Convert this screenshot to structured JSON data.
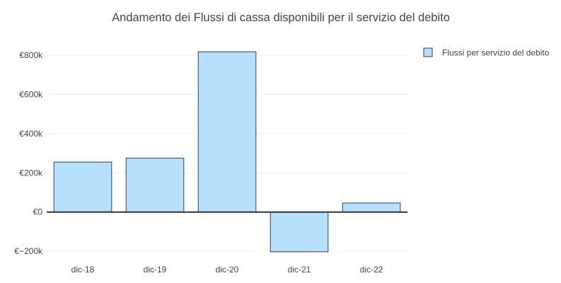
{
  "chart_data": {
    "type": "bar",
    "title": "Andamento dei Flussi di cassa disponibili per il servizio del debito",
    "categories": [
      "dic-18",
      "dic-19",
      "dic-20",
      "dic-21",
      "dic-22"
    ],
    "series": [
      {
        "name": "Flussi per servizio del debito",
        "values": [
          255000,
          275000,
          818000,
          -203000,
          46000
        ]
      }
    ],
    "y_ticks": [
      -200000,
      0,
      200000,
      400000,
      600000,
      800000
    ],
    "y_tick_labels": [
      "€−200k",
      "€0",
      "€200k",
      "€400k",
      "€600k",
      "€800k"
    ],
    "ylim": [
      -225000,
      880000
    ],
    "grid": true,
    "legend_position": "top-right",
    "colors": {
      "bar_fill": "#b7e0fd",
      "bar_stroke": "#2e3f5c",
      "grid": "#eeeeee",
      "zero_line": "#333333",
      "text": "#444444"
    }
  }
}
